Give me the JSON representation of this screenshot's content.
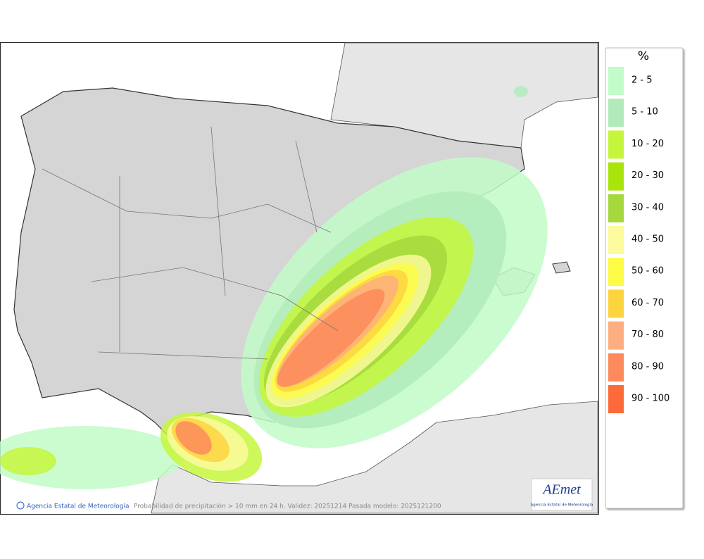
{
  "legend": {
    "title": "%",
    "items": [
      {
        "label": "2 - 5",
        "color": "#c2fcc8"
      },
      {
        "label": "5 - 10",
        "color": "#b2ebbb"
      },
      {
        "label": "10 - 20",
        "color": "#c6f63c"
      },
      {
        "label": "20 - 30",
        "color": "#a9e40a"
      },
      {
        "label": "30 - 40",
        "color": "#a5d83c"
      },
      {
        "label": "40 - 50",
        "color": "#fdfa9c"
      },
      {
        "label": "50 - 60",
        "color": "#fdfb46"
      },
      {
        "label": "60 - 70",
        "color": "#fdd43e"
      },
      {
        "label": "70 - 80",
        "color": "#fdae80"
      },
      {
        "label": "80 - 90",
        "color": "#fd8a5c"
      },
      {
        "label": "90 - 100",
        "color": "#fd6a3a"
      }
    ]
  },
  "footer": {
    "credit": "Agencia Estatal de Meteorología",
    "caption": "Probabilidad de precipitación > 10 mm en 24 h. Validez: 20251214 Pasada modelo: 2025121200"
  },
  "logo": {
    "name": "AEmet",
    "subtitle": "Agencia Estatal de Meteorología"
  }
}
